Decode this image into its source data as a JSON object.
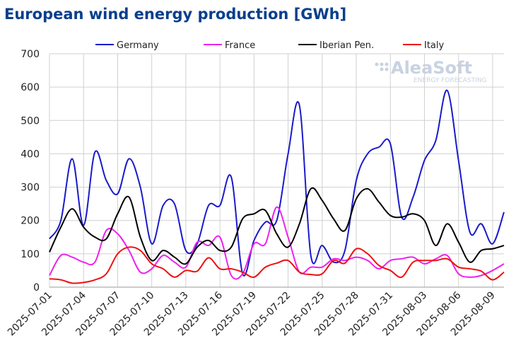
{
  "chart_data": {
    "type": "line",
    "title": "European wind energy production [GWh]",
    "watermark": {
      "brand": "AleaSoft",
      "tagline": "ENERGY FORECASTING"
    },
    "x": [
      "2025-07-01",
      "2025-07-02",
      "2025-07-03",
      "2025-07-04",
      "2025-07-05",
      "2025-07-06",
      "2025-07-07",
      "2025-07-08",
      "2025-07-09",
      "2025-07-10",
      "2025-07-11",
      "2025-07-12",
      "2025-07-13",
      "2025-07-14",
      "2025-07-15",
      "2025-07-16",
      "2025-07-17",
      "2025-07-18",
      "2025-07-19",
      "2025-07-20",
      "2025-07-21",
      "2025-07-22",
      "2025-07-23",
      "2025-07-24",
      "2025-07-25",
      "2025-07-26",
      "2025-07-27",
      "2025-07-28",
      "2025-07-29",
      "2025-07-30",
      "2025-07-31",
      "2025-08-01",
      "2025-08-02",
      "2025-08-03",
      "2025-08-04",
      "2025-08-05",
      "2025-08-06",
      "2025-08-07",
      "2025-08-08",
      "2025-08-09",
      "2025-08-10"
    ],
    "xticks": [
      "2025-07-01",
      "2025-07-04",
      "2025-07-07",
      "2025-07-10",
      "2025-07-13",
      "2025-07-16",
      "2025-07-19",
      "2025-07-22",
      "2025-07-25",
      "2025-07-28",
      "2025-07-31",
      "2025-08-03",
      "2025-08-06",
      "2025-08-09"
    ],
    "ylim": [
      0,
      700
    ],
    "yticks": [
      0,
      100,
      200,
      300,
      400,
      500,
      600,
      700
    ],
    "grid": true,
    "legend": "top",
    "series": [
      {
        "name": "Germany",
        "color": "#1a1acc",
        "values": [
          145,
          200,
          385,
          185,
          405,
          320,
          280,
          385,
          300,
          130,
          245,
          250,
          110,
          130,
          245,
          245,
          330,
          40,
          140,
          195,
          200,
          400,
          545,
          95,
          125,
          75,
          110,
          320,
          400,
          420,
          430,
          210,
          270,
          380,
          440,
          590,
          380,
          165,
          190,
          130,
          225
        ]
      },
      {
        "name": "France",
        "color": "#ee22ee",
        "values": [
          35,
          95,
          90,
          75,
          75,
          170,
          160,
          110,
          45,
          55,
          95,
          75,
          60,
          135,
          125,
          150,
          35,
          40,
          130,
          130,
          240,
          150,
          45,
          60,
          60,
          85,
          80,
          90,
          80,
          55,
          80,
          85,
          90,
          70,
          85,
          95,
          40,
          30,
          35,
          50,
          70
        ]
      },
      {
        "name": "Iberian Pen.",
        "color": "#000000",
        "values": [
          105,
          180,
          235,
          180,
          150,
          145,
          220,
          270,
          150,
          80,
          110,
          90,
          70,
          120,
          140,
          110,
          120,
          205,
          220,
          230,
          160,
          120,
          190,
          295,
          260,
          205,
          170,
          265,
          295,
          255,
          215,
          210,
          220,
          200,
          125,
          190,
          135,
          75,
          110,
          115,
          125
        ]
      },
      {
        "name": "Italy",
        "color": "#ee1111",
        "values": [
          25,
          22,
          12,
          14,
          22,
          40,
          100,
          120,
          110,
          70,
          55,
          30,
          50,
          48,
          88,
          55,
          55,
          45,
          30,
          60,
          72,
          80,
          45,
          38,
          40,
          80,
          72,
          115,
          100,
          65,
          50,
          30,
          75,
          80,
          80,
          85,
          60,
          55,
          48,
          22,
          45
        ]
      }
    ]
  }
}
